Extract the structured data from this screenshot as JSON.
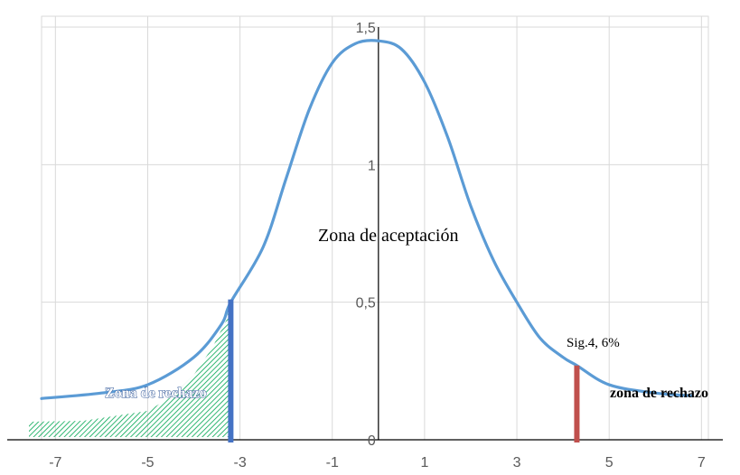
{
  "chart_data": {
    "type": "line",
    "title": "",
    "xlabel": "",
    "ylabel": "",
    "xlim": [
      -7,
      7
    ],
    "ylim": [
      0,
      1.5
    ],
    "grid": true,
    "legend": "none",
    "x_ticks": [
      -7,
      -5,
      -3,
      -1,
      1,
      3,
      5,
      7
    ],
    "x_tick_labels": [
      "-7",
      "-5",
      "-3",
      "-1",
      "1",
      "3",
      "5",
      "7"
    ],
    "y_ticks": [
      0,
      0.5,
      1,
      1.5
    ],
    "y_tick_labels": [
      "0",
      "0,5",
      "1",
      "1,5"
    ],
    "series": [
      {
        "color": "#5b9bd5",
        "x": [
          -7.3,
          -6,
          -5,
          -4,
          -3.4,
          -3.2,
          -2.5,
          -2,
          -1.5,
          -1,
          -0.5,
          0,
          0.5,
          1,
          1.5,
          2,
          2.5,
          3,
          3.5,
          4,
          4.3,
          5,
          6,
          6.8
        ],
        "y": [
          0.15,
          0.17,
          0.2,
          0.3,
          0.42,
          0.5,
          0.7,
          0.95,
          1.2,
          1.37,
          1.44,
          1.45,
          1.42,
          1.3,
          1.1,
          0.85,
          0.65,
          0.5,
          0.37,
          0.3,
          0.27,
          0.2,
          0.17,
          0.16
        ]
      }
    ],
    "critical_lines": [
      {
        "x": -3.2,
        "y_top": 0.51,
        "color": "#4472c4"
      },
      {
        "x": 4.3,
        "y_top": 0.27,
        "color": "#c0504d"
      }
    ],
    "hatched_region": {
      "color": "#00a651",
      "x_from": -7.3,
      "x_to": -3.2
    },
    "annotations": {
      "acceptance": "Zona de aceptación",
      "rejection_left": "Zona de rechazo",
      "rejection_right": "zona de rechazo",
      "significance": "Sig.4, 6%"
    }
  }
}
